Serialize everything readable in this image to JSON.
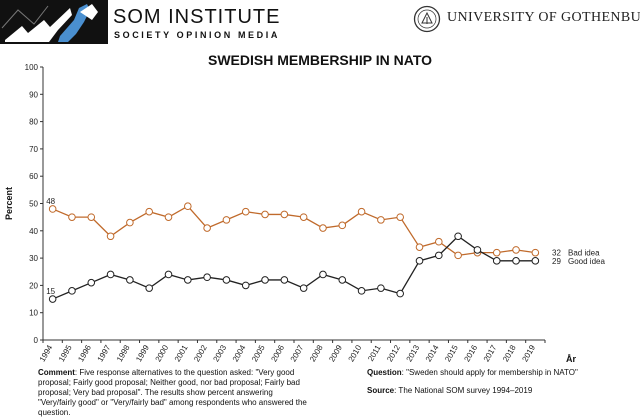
{
  "header": {
    "org_name": "SOM INSTITUTE",
    "org_subtitle": "SOCIETY OPINION MEDIA",
    "university": "UNIVERSITY OF GOTHENBURG"
  },
  "chart_data": {
    "type": "line",
    "title": "SWEDISH MEMBERSHIP IN NATO",
    "xlabel": "År",
    "ylabel": "Percent",
    "ylim": [
      0,
      100
    ],
    "yticks": [
      "0",
      "10",
      "20",
      "30",
      "40",
      "50",
      "60",
      "70",
      "80",
      "90",
      "100"
    ],
    "categories": [
      "1994",
      "1995",
      "1996",
      "1997",
      "1998",
      "1999",
      "2000",
      "2001",
      "2002",
      "2003",
      "2004",
      "2005",
      "2006",
      "2007",
      "2008",
      "2009",
      "2010",
      "2011",
      "2012",
      "2013",
      "2014",
      "2015",
      "2016",
      "2017",
      "2018",
      "2019"
    ],
    "grid": false,
    "series": [
      {
        "name": "Bad idea",
        "color": "#c06a2b",
        "values": [
          48,
          45,
          45,
          38,
          43,
          47,
          45,
          49,
          41,
          44,
          47,
          46,
          46,
          45,
          41,
          42,
          47,
          44,
          45,
          34,
          36,
          31,
          32,
          32,
          33,
          32
        ],
        "start_label": "48",
        "end_label": "32"
      },
      {
        "name": "Good idea",
        "color": "#222222",
        "values": [
          15,
          18,
          21,
          24,
          22,
          19,
          24,
          22,
          23,
          22,
          20,
          22,
          22,
          19,
          24,
          22,
          18,
          19,
          17,
          29,
          31,
          38,
          33,
          29,
          29,
          29
        ],
        "start_label": "15",
        "end_label": "29"
      }
    ]
  },
  "footer": {
    "comment_label": "Comment",
    "comment_text": ": Five response alternatives to the question asked: \"Very good proposal; Fairly good proposal; Neither good, nor bad proposal; Fairly bad proposal; Very bad proposal\". The results show percent answering \"Very/fairly good\" or \"Very/fairly bad\" among respondents who answered the question.",
    "question_label": "Question",
    "question_text": ": \"Sweden should apply for membership in NATO\"",
    "source_label": "Source",
    "source_text": ": The National SOM survey 1994–2019"
  }
}
